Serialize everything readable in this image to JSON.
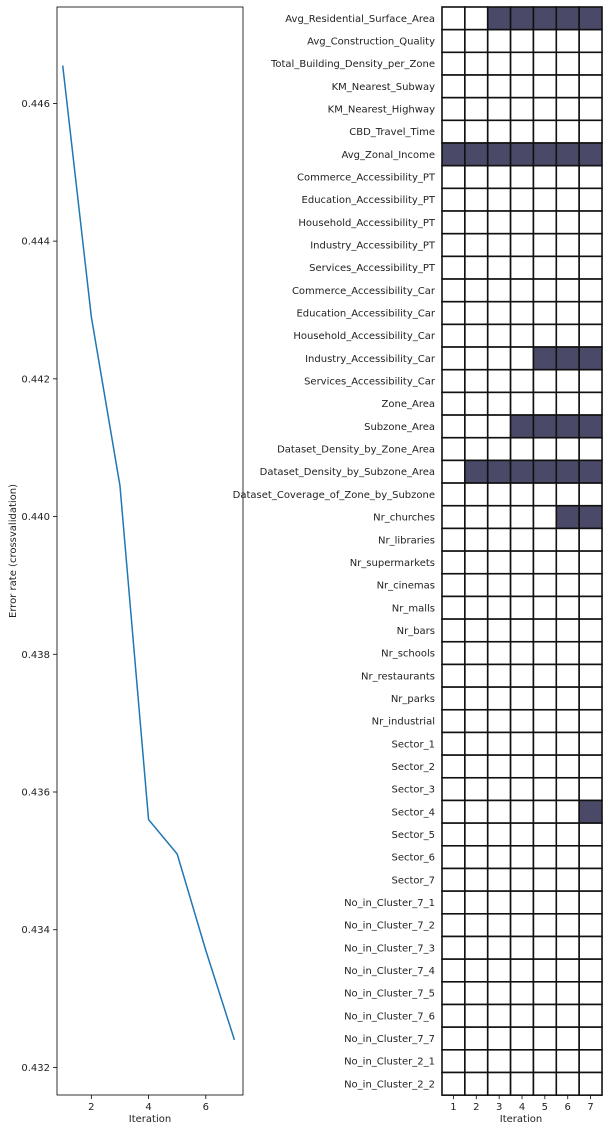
{
  "chart_data": [
    {
      "type": "line",
      "xlabel": "Iteration",
      "ylabel": "Error rate (crossvalidation)",
      "xlim": [
        0.8,
        7.3
      ],
      "ylim": [
        0.4316,
        0.4474
      ],
      "xticks": [
        2,
        4,
        6
      ],
      "yticks": [
        0.432,
        0.434,
        0.436,
        0.438,
        0.44,
        0.442,
        0.444,
        0.446
      ],
      "ytick_labels": [
        "0.432",
        "0.434",
        "0.436",
        "0.438",
        "0.440",
        "0.442",
        "0.444",
        "0.446"
      ],
      "x": [
        1,
        2,
        3,
        4,
        5,
        6,
        7
      ],
      "y": [
        0.44655,
        0.4429,
        0.44045,
        0.4356,
        0.4351,
        0.4337,
        0.4324
      ],
      "color": "#1f77b4"
    },
    {
      "type": "heatmap",
      "xlabel": "Iteration",
      "x": [
        1,
        2,
        3,
        4,
        5,
        6,
        7
      ],
      "selected_color": "#4a4a68",
      "unselected_color": "#ffffff",
      "rows": [
        {
          "label": "Avg_Residential_Surface_Area",
          "first_selected": 3
        },
        {
          "label": "Avg_Construction_Quality",
          "first_selected": 0
        },
        {
          "label": "Total_Building_Density_per_Zone",
          "first_selected": 0
        },
        {
          "label": "KM_Nearest_Subway",
          "first_selected": 0
        },
        {
          "label": "KM_Nearest_Highway",
          "first_selected": 0
        },
        {
          "label": "CBD_Travel_Time",
          "first_selected": 0
        },
        {
          "label": "Avg_Zonal_Income",
          "first_selected": 1
        },
        {
          "label": "Commerce_Accessibility_PT",
          "first_selected": 0
        },
        {
          "label": "Education_Accessibility_PT",
          "first_selected": 0
        },
        {
          "label": "Household_Accessibility_PT",
          "first_selected": 0
        },
        {
          "label": "Industry_Accessibility_PT",
          "first_selected": 0
        },
        {
          "label": "Services_Accessibility_PT",
          "first_selected": 0
        },
        {
          "label": "Commerce_Accessibility_Car",
          "first_selected": 0
        },
        {
          "label": "Education_Accessibility_Car",
          "first_selected": 0
        },
        {
          "label": "Household_Accessibility_Car",
          "first_selected": 0
        },
        {
          "label": "Industry_Accessibility_Car",
          "first_selected": 5
        },
        {
          "label": "Services_Accessibility_Car",
          "first_selected": 0
        },
        {
          "label": "Zone_Area",
          "first_selected": 0
        },
        {
          "label": "Subzone_Area",
          "first_selected": 4
        },
        {
          "label": "Dataset_Density_by_Zone_Area",
          "first_selected": 0
        },
        {
          "label": "Dataset_Density_by_Subzone_Area",
          "first_selected": 2
        },
        {
          "label": "Dataset_Coverage_of_Zone_by_Subzone",
          "first_selected": 0
        },
        {
          "label": "Nr_churches",
          "first_selected": 6
        },
        {
          "label": "Nr_libraries",
          "first_selected": 0
        },
        {
          "label": "Nr_supermarkets",
          "first_selected": 0
        },
        {
          "label": "Nr_cinemas",
          "first_selected": 0
        },
        {
          "label": "Nr_malls",
          "first_selected": 0
        },
        {
          "label": "Nr_bars",
          "first_selected": 0
        },
        {
          "label": "Nr_schools",
          "first_selected": 0
        },
        {
          "label": "Nr_restaurants",
          "first_selected": 0
        },
        {
          "label": "Nr_parks",
          "first_selected": 0
        },
        {
          "label": "Nr_industrial",
          "first_selected": 0
        },
        {
          "label": "Sector_1",
          "first_selected": 0
        },
        {
          "label": "Sector_2",
          "first_selected": 0
        },
        {
          "label": "Sector_3",
          "first_selected": 0
        },
        {
          "label": "Sector_4",
          "first_selected": 7
        },
        {
          "label": "Sector_5",
          "first_selected": 0
        },
        {
          "label": "Sector_6",
          "first_selected": 0
        },
        {
          "label": "Sector_7",
          "first_selected": 0
        },
        {
          "label": "No_in_Cluster_7_1",
          "first_selected": 0
        },
        {
          "label": "No_in_Cluster_7_2",
          "first_selected": 0
        },
        {
          "label": "No_in_Cluster_7_3",
          "first_selected": 0
        },
        {
          "label": "No_in_Cluster_7_4",
          "first_selected": 0
        },
        {
          "label": "No_in_Cluster_7_5",
          "first_selected": 0
        },
        {
          "label": "No_in_Cluster_7_6",
          "first_selected": 0
        },
        {
          "label": "No_in_Cluster_7_7",
          "first_selected": 0
        },
        {
          "label": "No_in_Cluster_2_1",
          "first_selected": 0
        },
        {
          "label": "No_in_Cluster_2_2",
          "first_selected": 0
        }
      ]
    }
  ]
}
